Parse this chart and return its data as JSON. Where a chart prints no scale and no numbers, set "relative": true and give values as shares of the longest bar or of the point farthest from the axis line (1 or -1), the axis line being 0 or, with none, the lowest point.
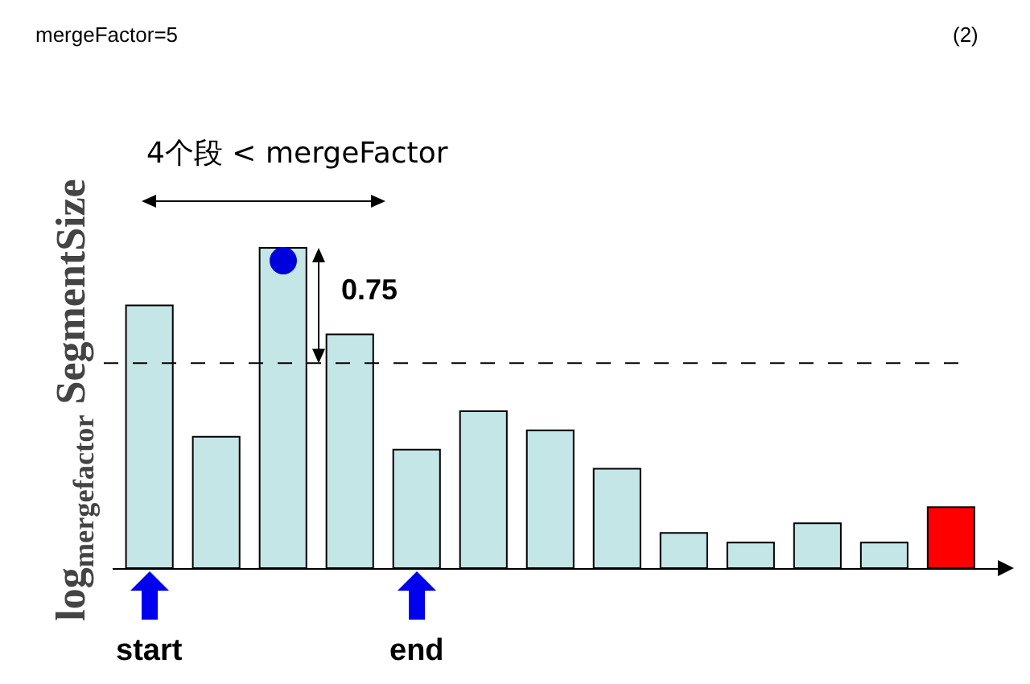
{
  "chart_data": {
    "type": "bar",
    "relative": true,
    "ylabel": "log$_{mergefactor}$ SegmentSize",
    "categories": [
      null,
      null,
      null,
      null,
      null,
      null,
      null,
      null,
      null,
      null,
      null,
      null,
      null
    ],
    "values": [
      0.82,
      0.41,
      1,
      0.73,
      0.37,
      0.49,
      0.43,
      0.31,
      0.11,
      0.08,
      0.14,
      0.08,
      0.19
    ],
    "colors": [
      "#c5e6e6",
      "#c5e6e6",
      "#c5e6e6",
      "#c5e6e6",
      "#c5e6e6",
      "#c5e6e6",
      "#c5e6e6",
      "#c5e6e6",
      "#c5e6e6",
      "#c5e6e6",
      "#c5e6e6",
      "#c5e6e6",
      "#ff0000"
    ],
    "ref_lines": [
      {
        "axis": "y",
        "value": 0.64,
        "color": "#000000",
        "line_style": "dashed"
      }
    ],
    "annotations": [
      "mergeFactor=5",
      "(2)",
      "4个段 < mergeFactor",
      "0.75",
      "start",
      "end"
    ],
    "grid": false
  }
}
